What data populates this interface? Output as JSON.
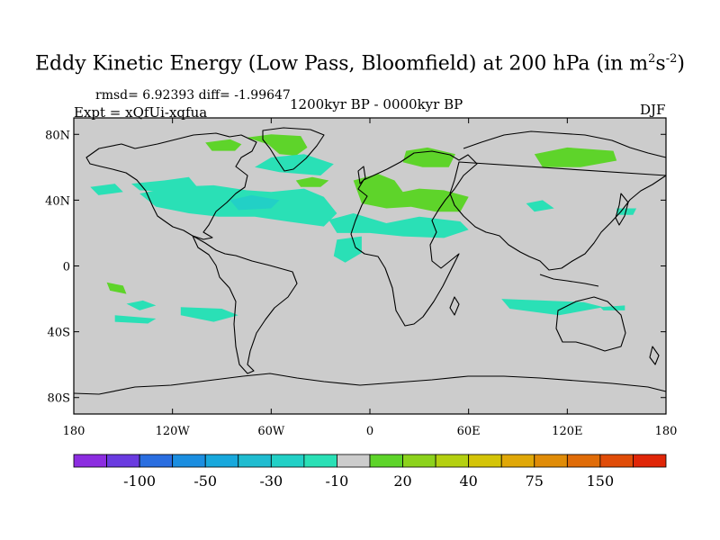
{
  "title": {
    "main": "Eddy Kinetic Energy (Low Pass, Bloomfield) at 200 hPa (in m",
    "exp1": "2",
    "mid": "s",
    "exp2": "-2",
    "close": ")"
  },
  "stats_text": "rmsd= 6.92393 diff= -1.99647",
  "expt_text": "Expt = xQfUi-xqfua",
  "period_text": "1200kyr BP - 0000kyr BP",
  "season_text": "DJF",
  "map": {
    "projection": "cylindrical equidistant",
    "lon_range": [
      -180,
      180
    ],
    "lat_range": [
      -90,
      90
    ],
    "lat_ticks": [
      {
        "value": 80,
        "label": "80N"
      },
      {
        "value": 40,
        "label": "40N"
      },
      {
        "value": 0,
        "label": "0"
      },
      {
        "value": -40,
        "label": "40S"
      },
      {
        "value": -80,
        "label": "80S"
      }
    ],
    "lon_ticks": [
      {
        "value": -180,
        "label": "180"
      },
      {
        "value": -120,
        "label": "120W"
      },
      {
        "value": -60,
        "label": "60W"
      },
      {
        "value": 0,
        "label": "0"
      },
      {
        "value": 60,
        "label": "60E"
      },
      {
        "value": 120,
        "label": "120E"
      },
      {
        "value": 180,
        "label": "180"
      }
    ],
    "background_color": "#cccccc",
    "coast_color": "#000000"
  },
  "colorbar": {
    "colors": [
      "#8c2de0",
      "#6a3be0",
      "#2a6ee0",
      "#1b8ee0",
      "#18a8dc",
      "#20bcd0",
      "#22d0c6",
      "#2ae0b6",
      "#cccccc",
      "#5ed42a",
      "#8cd21c",
      "#b4d010",
      "#d4c408",
      "#e0a808",
      "#e08c08",
      "#e06c08",
      "#e04c08",
      "#e02608"
    ],
    "labels": [
      "-100",
      "-50",
      "-30",
      "-10",
      "20",
      "40",
      "75",
      "150"
    ],
    "label_box_positions": [
      2,
      4,
      6,
      8,
      10,
      12,
      14,
      16
    ]
  },
  "anomalies": [
    {
      "name": "greenland-positive",
      "color": "#5ed42a",
      "points": [
        [
          -75,
          78
        ],
        [
          -60,
          80
        ],
        [
          -42,
          79
        ],
        [
          -38,
          72
        ],
        [
          -45,
          67
        ],
        [
          -55,
          68
        ],
        [
          -62,
          74
        ]
      ]
    },
    {
      "name": "arctic-canada-positive",
      "color": "#5ed42a",
      "points": [
        [
          -100,
          75
        ],
        [
          -85,
          77
        ],
        [
          -78,
          74
        ],
        [
          -82,
          70
        ],
        [
          -96,
          70
        ]
      ]
    },
    {
      "name": "north-atlantic-negative",
      "color": "#2ae0b6",
      "points": [
        [
          -60,
          66
        ],
        [
          -40,
          68
        ],
        [
          -22,
          62
        ],
        [
          -30,
          55
        ],
        [
          -55,
          57
        ],
        [
          -70,
          60
        ]
      ]
    },
    {
      "name": "north-pacific-negative",
      "color": "#2ae0b6",
      "points": [
        [
          -145,
          50
        ],
        [
          -125,
          52
        ],
        [
          -110,
          54
        ],
        [
          -105,
          48
        ],
        [
          -120,
          45
        ],
        [
          -140,
          46
        ]
      ]
    },
    {
      "name": "north-america-negative",
      "color": "#2ae0b6",
      "points": [
        [
          -140,
          44
        ],
        [
          -120,
          48
        ],
        [
          -95,
          49
        ],
        [
          -75,
          46
        ],
        [
          -60,
          45
        ],
        [
          -40,
          47
        ],
        [
          -28,
          42
        ],
        [
          -20,
          32
        ],
        [
          -28,
          24
        ],
        [
          -50,
          27
        ],
        [
          -70,
          30
        ],
        [
          -92,
          30
        ],
        [
          -110,
          32
        ],
        [
          -130,
          36
        ]
      ]
    },
    {
      "name": "north-america-core-negative",
      "color": "#22d0c6",
      "points": [
        [
          -85,
          40
        ],
        [
          -72,
          43
        ],
        [
          -55,
          40
        ],
        [
          -60,
          35
        ],
        [
          -80,
          34
        ]
      ]
    },
    {
      "name": "atlantic-west-negative",
      "color": "#2ae0b6",
      "points": [
        [
          -170,
          48
        ],
        [
          -155,
          50
        ],
        [
          -150,
          45
        ],
        [
          -165,
          43
        ]
      ]
    },
    {
      "name": "subtropical-atlantic-africa-negative",
      "color": "#2ae0b6",
      "points": [
        [
          -25,
          28
        ],
        [
          -10,
          32
        ],
        [
          10,
          26
        ],
        [
          30,
          30
        ],
        [
          55,
          27
        ],
        [
          60,
          22
        ],
        [
          45,
          17
        ],
        [
          20,
          18
        ],
        [
          0,
          20
        ],
        [
          -20,
          20
        ]
      ]
    },
    {
      "name": "west-africa-negative",
      "color": "#2ae0b6",
      "points": [
        [
          -20,
          16
        ],
        [
          -5,
          18
        ],
        [
          -5,
          8
        ],
        [
          -15,
          2
        ],
        [
          -22,
          6
        ]
      ]
    },
    {
      "name": "north-atlantic-positive-blob",
      "color": "#5ed42a",
      "points": [
        [
          -45,
          52
        ],
        [
          -35,
          54
        ],
        [
          -25,
          52
        ],
        [
          -30,
          48
        ],
        [
          -42,
          48
        ]
      ]
    },
    {
      "name": "europe-positive",
      "color": "#5ed42a",
      "points": [
        [
          -10,
          52
        ],
        [
          5,
          56
        ],
        [
          15,
          52
        ],
        [
          20,
          45
        ],
        [
          30,
          47
        ],
        [
          45,
          46
        ],
        [
          60,
          42
        ],
        [
          55,
          33
        ],
        [
          40,
          33
        ],
        [
          25,
          36
        ],
        [
          10,
          35
        ],
        [
          -5,
          38
        ]
      ]
    },
    {
      "name": "scandinavia-positive",
      "color": "#5ed42a",
      "points": [
        [
          22,
          70
        ],
        [
          35,
          72
        ],
        [
          52,
          68
        ],
        [
          48,
          60
        ],
        [
          32,
          60
        ],
        [
          20,
          63
        ]
      ]
    },
    {
      "name": "siberia-positive",
      "color": "#5ed42a",
      "points": [
        [
          100,
          68
        ],
        [
          120,
          72
        ],
        [
          148,
          70
        ],
        [
          150,
          64
        ],
        [
          128,
          60
        ],
        [
          105,
          60
        ]
      ]
    },
    {
      "name": "east-asia-negative",
      "color": "#2ae0b6",
      "points": [
        [
          95,
          38
        ],
        [
          105,
          40
        ],
        [
          112,
          35
        ],
        [
          100,
          33
        ]
      ]
    },
    {
      "name": "pacific-east-negative",
      "color": "#2ae0b6",
      "points": [
        [
          150,
          35
        ],
        [
          162,
          35
        ],
        [
          160,
          31
        ],
        [
          150,
          31
        ]
      ]
    },
    {
      "name": "southern-pacific-positive",
      "color": "#5ed42a",
      "points": [
        [
          -160,
          -10
        ],
        [
          -150,
          -12
        ],
        [
          -148,
          -17
        ],
        [
          -158,
          -15
        ]
      ]
    },
    {
      "name": "south-pacific-negative",
      "color": "#2ae0b6",
      "points": [
        [
          -148,
          -23
        ],
        [
          -138,
          -21
        ],
        [
          -130,
          -24
        ],
        [
          -140,
          -27
        ]
      ]
    },
    {
      "name": "south-pacific-east-negative",
      "color": "#2ae0b6",
      "points": [
        [
          -115,
          -25
        ],
        [
          -90,
          -26
        ],
        [
          -80,
          -30
        ],
        [
          -95,
          -34
        ],
        [
          -115,
          -30
        ]
      ]
    },
    {
      "name": "south-atlantic-negative",
      "color": "#2ae0b6",
      "points": [
        [
          -155,
          -30
        ],
        [
          -130,
          -32
        ],
        [
          -135,
          -35
        ],
        [
          -155,
          -34
        ]
      ]
    },
    {
      "name": "southern-indian-negative",
      "color": "#2ae0b6",
      "points": [
        [
          80,
          -20
        ],
        [
          105,
          -21
        ],
        [
          130,
          -22
        ],
        [
          142,
          -25
        ],
        [
          115,
          -30
        ],
        [
          85,
          -26
        ]
      ]
    },
    {
      "name": "south-ocean-right-negative",
      "color": "#2ae0b6",
      "points": [
        [
          140,
          -25
        ],
        [
          155,
          -24
        ],
        [
          155,
          -27
        ],
        [
          142,
          -27
        ]
      ]
    }
  ]
}
